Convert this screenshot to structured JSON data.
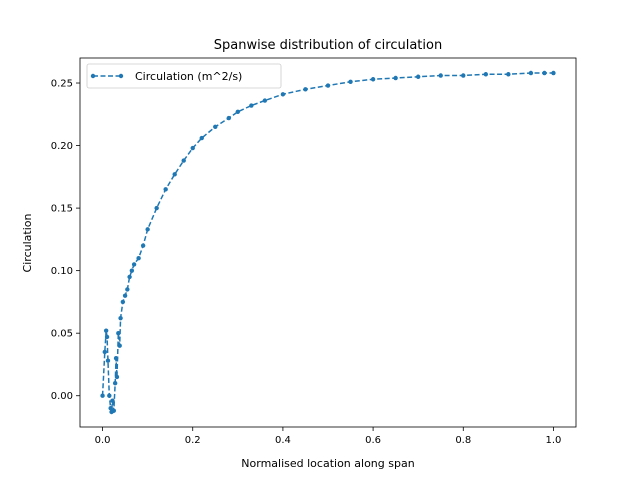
{
  "chart_data": {
    "type": "line",
    "title": "Spanwise distribution of circulation",
    "xlabel": "Normalised location along span",
    "ylabel": "Circulation",
    "xlim": [
      -0.05,
      1.05
    ],
    "ylim": [
      -0.025,
      0.27
    ],
    "xticks": [
      0.0,
      0.2,
      0.4,
      0.6,
      0.8,
      1.0
    ],
    "xtick_labels": [
      "0.0",
      "0.2",
      "0.4",
      "0.6",
      "0.8",
      "1.0"
    ],
    "yticks": [
      0.0,
      0.05,
      0.1,
      0.15,
      0.2,
      0.25
    ],
    "ytick_labels": [
      "0.00",
      "0.05",
      "0.10",
      "0.15",
      "0.20",
      "0.25"
    ],
    "grid": false,
    "legend_position": "top-left",
    "series": [
      {
        "name": "Circulation (m^2/s)",
        "color": "#1f77b4",
        "style": "dashed-with-dots",
        "x": [
          0.0,
          0.005,
          0.008,
          0.01,
          0.012,
          0.015,
          0.018,
          0.02,
          0.022,
          0.025,
          0.028,
          0.03,
          0.032,
          0.035,
          0.038,
          0.04,
          0.045,
          0.05,
          0.055,
          0.06,
          0.065,
          0.07,
          0.08,
          0.09,
          0.1,
          0.12,
          0.14,
          0.16,
          0.18,
          0.2,
          0.22,
          0.25,
          0.28,
          0.3,
          0.33,
          0.36,
          0.4,
          0.45,
          0.5,
          0.55,
          0.6,
          0.65,
          0.7,
          0.75,
          0.8,
          0.85,
          0.9,
          0.95,
          0.98,
          1.0
        ],
        "y": [
          0.0,
          0.035,
          0.052,
          0.047,
          0.028,
          0.0,
          -0.01,
          -0.013,
          -0.004,
          -0.012,
          0.01,
          0.03,
          0.015,
          0.05,
          0.04,
          0.062,
          0.075,
          0.08,
          0.085,
          0.095,
          0.1,
          0.105,
          0.11,
          0.12,
          0.133,
          0.15,
          0.165,
          0.177,
          0.188,
          0.198,
          0.206,
          0.215,
          0.222,
          0.227,
          0.232,
          0.236,
          0.241,
          0.245,
          0.248,
          0.251,
          0.253,
          0.254,
          0.255,
          0.256,
          0.256,
          0.257,
          0.257,
          0.258,
          0.258,
          0.258
        ]
      }
    ]
  }
}
